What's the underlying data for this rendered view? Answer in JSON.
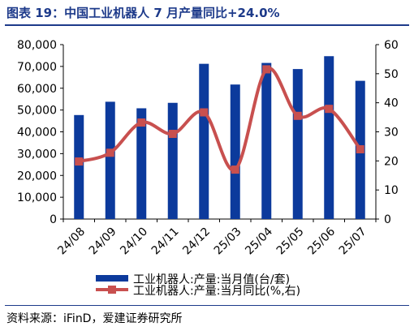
{
  "title": "图表 19：中国工业机器人 7 月产量同比+24.0%",
  "source": "资料来源：iFinD，爱建证券研究所",
  "chart_data": {
    "type": "bar+line",
    "categories": [
      "24/08",
      "24/09",
      "24/10",
      "24/11",
      "24/12",
      "25/03",
      "25/04",
      "25/05",
      "25/06",
      "25/07"
    ],
    "series": [
      {
        "name": "工业机器人:产量:当月值(台/套)",
        "type": "bar",
        "axis": "left",
        "color": "#0c3a9c",
        "values": [
          47700,
          53800,
          50800,
          53300,
          71200,
          61700,
          71600,
          68800,
          74700,
          63400
        ]
      },
      {
        "name": "工业机器人:产量:当月同比(%,右)",
        "type": "line",
        "axis": "right",
        "color": "#c8504f",
        "values": [
          19.8,
          22.8,
          33.2,
          29.3,
          36.7,
          17.0,
          51.5,
          35.5,
          37.9,
          24.0
        ]
      }
    ],
    "left_axis": {
      "min": 0,
      "max": 80000,
      "step": 10000,
      "tick_labels": [
        "0",
        "10,000",
        "20,000",
        "30,000",
        "40,000",
        "50,000",
        "60,000",
        "70,000",
        "80,000"
      ]
    },
    "right_axis": {
      "min": 0,
      "max": 60,
      "step": 10,
      "tick_labels": [
        "0",
        "10",
        "20",
        "30",
        "40",
        "50",
        "60"
      ]
    },
    "grid": false,
    "legend_position": "bottom"
  }
}
